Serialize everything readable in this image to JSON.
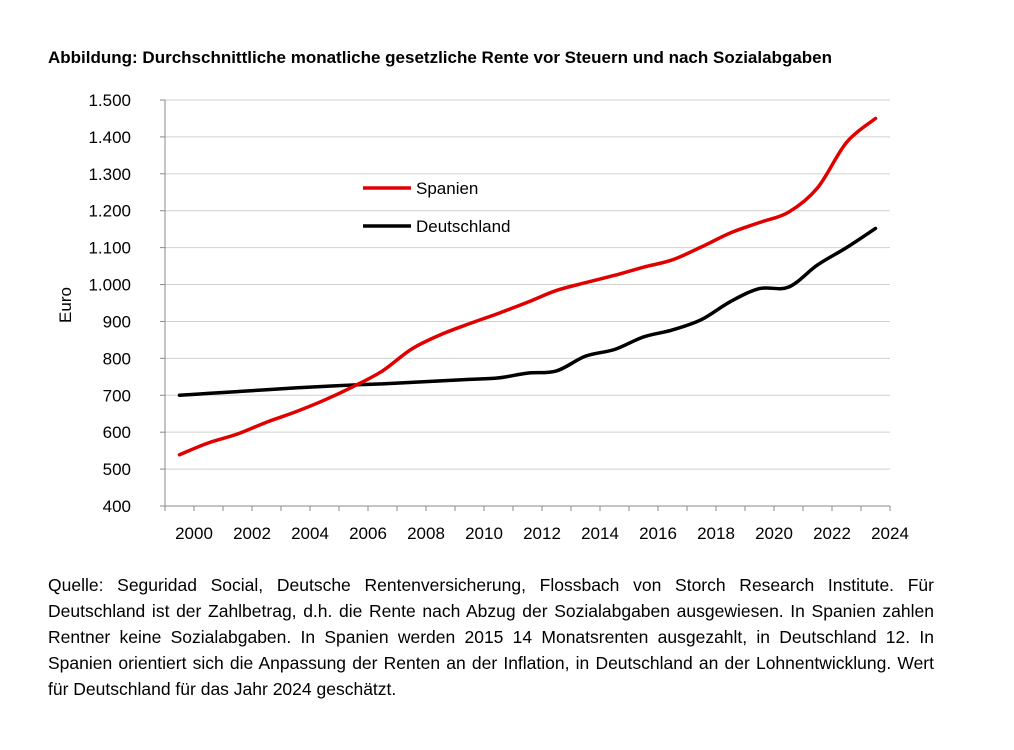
{
  "figure_title": "Abbildung: Durchschnittliche monatliche gesetzliche Rente vor Steuern und nach Sozialabgaben",
  "source_note": "Quelle: Seguridad Social, Deutsche Rentenversicherung, Flossbach von Storch Research Institute. Für Deutschland ist der Zahlbetrag, d.h. die Rente nach Abzug der Sozialabgaben ausgewiesen. In Spanien zahlen Rentner keine Sozialabgaben. In Spanien werden 2015 14 Monatsrenten ausgezahlt, in Deutschland 12. In Spanien orientiert sich die Anpassung der Renten an der Inflation, in Deutschland an der Lohnentwicklung. Wert für Deutschland für das Jahr 2024 geschätzt.",
  "chart_data": {
    "type": "line",
    "title": "Abbildung: Durchschnittliche monatliche gesetzliche Rente vor Steuern und nach Sozialabgaben",
    "xlabel": "",
    "ylabel": "Euro",
    "xlim": [
      1999,
      2024
    ],
    "ylim": [
      400,
      1500
    ],
    "x_ticks": [
      2000,
      2002,
      2004,
      2006,
      2008,
      2010,
      2012,
      2014,
      2016,
      2018,
      2020,
      2022,
      2024
    ],
    "y_ticks": [
      400,
      500,
      600,
      700,
      800,
      900,
      1000,
      1100,
      1200,
      1300,
      1400,
      1500
    ],
    "y_tick_labels": [
      "400",
      "500",
      "600",
      "700",
      "800",
      "900",
      "1.000",
      "1.100",
      "1.200",
      "1.300",
      "1.400",
      "1.500"
    ],
    "grid": "horizontal",
    "legend_position": "upper-left-center",
    "x": [
      1999.5,
      2000.5,
      2001.5,
      2002.5,
      2003.5,
      2004.5,
      2005.5,
      2006.5,
      2007.5,
      2008.5,
      2009.5,
      2010.5,
      2011.5,
      2012.5,
      2013.5,
      2014.5,
      2015.5,
      2016.5,
      2017.5,
      2018.5,
      2019.5,
      2020.5,
      2021.5,
      2022.5,
      2023.5
    ],
    "series": [
      {
        "name": "Spanien",
        "color": "#e00000",
        "values": [
          539,
          571,
          595,
          627,
          655,
          687,
          724,
          766,
          825,
          864,
          894,
          922,
          952,
          984,
          1005,
          1025,
          1047,
          1067,
          1102,
          1140,
          1168,
          1196,
          1262,
          1385,
          1450
        ]
      },
      {
        "name": "Deutschland",
        "color": "#000000",
        "values": [
          700,
          705,
          710,
          715,
          720,
          724,
          728,
          731,
          735,
          739,
          743,
          747,
          760,
          766,
          806,
          824,
          858,
          877,
          905,
          954,
          989,
          993,
          1053,
          1100,
          1152
        ]
      }
    ]
  }
}
